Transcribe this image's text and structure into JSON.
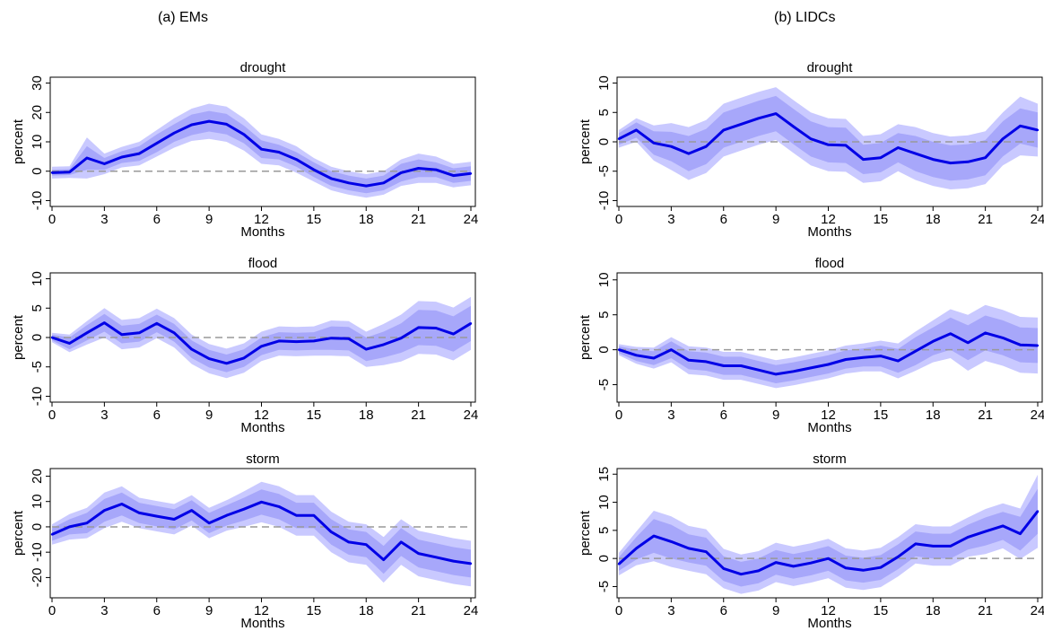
{
  "columns": [
    {
      "title": "(a) EMs"
    },
    {
      "title": "(b)  LIDCs"
    }
  ],
  "chart_data": [
    {
      "type": "line",
      "panel": "EMs",
      "title": "drought",
      "xlabel": "Months",
      "ylabel": "percent",
      "xlim": [
        0,
        24
      ],
      "ylim": [
        -12,
        32
      ],
      "xticks": [
        0,
        3,
        6,
        9,
        12,
        15,
        18,
        21,
        24
      ],
      "yticks": [
        -10,
        0,
        10,
        20,
        30
      ],
      "x": [
        0,
        1,
        2,
        3,
        4,
        5,
        6,
        7,
        8,
        9,
        10,
        11,
        12,
        13,
        14,
        15,
        16,
        17,
        18,
        19,
        20,
        21,
        22,
        23,
        24
      ],
      "series": [
        {
          "values": [
            -0.5,
            -0.3,
            4.5,
            2.5,
            4.8,
            6,
            9.5,
            13,
            15.8,
            17,
            16,
            12.5,
            7.5,
            6.5,
            4,
            0.5,
            -2.5,
            -4,
            -5,
            -4,
            -0.5,
            1,
            0.5,
            -1.5,
            -0.8
          ],
          "bands": [
            {
              "width": [
                2,
                2,
                7,
                3.5,
                3.5,
                4,
                4.5,
                5,
                5.5,
                6,
                6,
                5.5,
                5,
                4.5,
                4.5,
                4,
                4,
                4,
                4,
                4,
                4.5,
                5,
                4.5,
                4,
                4
              ],
              "color": "#c9c9ff"
            },
            {
              "width": [
                1,
                1,
                4,
                2,
                2,
                2.5,
                3,
                3,
                3.5,
                3.5,
                3.5,
                3,
                3,
                2.5,
                2.5,
                2.5,
                2.5,
                2.5,
                2.5,
                2.5,
                3,
                3,
                2.5,
                2.5,
                2.5
              ],
              "color": "#a7a7fa"
            }
          ]
        }
      ],
      "line_color": "#0000e6",
      "zero_line": true
    },
    {
      "type": "line",
      "panel": "LIDCs",
      "title": "drought",
      "xlabel": "Months",
      "ylabel": "percent",
      "xlim": [
        0,
        24
      ],
      "ylim": [
        -11,
        11
      ],
      "xticks": [
        0,
        3,
        6,
        9,
        12,
        15,
        18,
        21,
        24
      ],
      "yticks": [
        -10,
        -5,
        0,
        5,
        10
      ],
      "x": [
        0,
        1,
        2,
        3,
        4,
        5,
        6,
        7,
        8,
        9,
        10,
        11,
        12,
        13,
        14,
        15,
        16,
        17,
        18,
        19,
        20,
        21,
        22,
        23,
        24
      ],
      "series": [
        {
          "values": [
            0.5,
            2,
            -0.2,
            -0.8,
            -2,
            -0.8,
            2,
            3,
            4,
            4.8,
            2.6,
            0.5,
            -0.5,
            -0.6,
            -3,
            -2.7,
            -1,
            -2,
            -3,
            -3.6,
            -3.4,
            -2.7,
            0.5,
            2.7,
            2
          ],
          "bands": [
            {
              "width": [
                1.5,
                2,
                3,
                4,
                4.5,
                4.5,
                4.5,
                4.5,
                4.5,
                4.5,
                4.5,
                4.5,
                4.5,
                4.5,
                4,
                4,
                4,
                4.5,
                4.5,
                4.5,
                4.5,
                4.5,
                4.5,
                5,
                4.5
              ],
              "color": "#c9c9ff"
            },
            {
              "width": [
                1,
                1.3,
                2,
                2.5,
                3,
                3,
                3,
                3,
                3,
                3,
                3,
                3,
                3,
                3,
                2.5,
                2.5,
                2.5,
                3,
                3,
                3,
                3,
                3,
                3,
                3,
                3
              ],
              "color": "#a7a7fa"
            }
          ]
        }
      ],
      "line_color": "#0000e6",
      "zero_line": true
    },
    {
      "type": "line",
      "panel": "EMs",
      "title": "flood",
      "xlabel": "Months",
      "ylabel": "percent",
      "xlim": [
        0,
        24
      ],
      "ylim": [
        -11,
        11
      ],
      "xticks": [
        0,
        3,
        6,
        9,
        12,
        15,
        18,
        21,
        24
      ],
      "yticks": [
        -10,
        -5,
        0,
        5,
        10
      ],
      "x": [
        0,
        1,
        2,
        3,
        4,
        5,
        6,
        7,
        8,
        9,
        10,
        11,
        12,
        13,
        14,
        15,
        16,
        17,
        18,
        19,
        20,
        21,
        22,
        23,
        24
      ],
      "series": [
        {
          "values": [
            0,
            -1,
            0.8,
            2.5,
            0.5,
            0.8,
            2.4,
            0.8,
            -2,
            -3.6,
            -4.4,
            -3.5,
            -1.5,
            -0.6,
            -0.7,
            -0.6,
            -0.1,
            -0.2,
            -2,
            -1.2,
            -0.1,
            1.7,
            1.6,
            0.6,
            2.4
          ],
          "bands": [
            {
              "width": [
                0.8,
                1.5,
                2,
                2.5,
                2.5,
                2.5,
                2.5,
                2.5,
                2.5,
                2.5,
                2.5,
                2.5,
                2.5,
                2.5,
                2.5,
                2.5,
                3,
                3,
                3,
                3.5,
                4,
                4.5,
                4.5,
                4.5,
                4.5
              ],
              "color": "#c9c9ff"
            },
            {
              "width": [
                0.5,
                1,
                1.3,
                1.5,
                1.5,
                1.5,
                1.5,
                1.5,
                1.5,
                1.5,
                1.5,
                1.5,
                1.5,
                1.5,
                1.5,
                1.5,
                2,
                2,
                2,
                2.2,
                2.5,
                3,
                3,
                3,
                3
              ],
              "color": "#a7a7fa"
            }
          ]
        }
      ],
      "line_color": "#0000e6",
      "zero_line": true
    },
    {
      "type": "line",
      "panel": "LIDCs",
      "title": "flood",
      "xlabel": "Months",
      "ylabel": "percent",
      "xlim": [
        0,
        24
      ],
      "ylim": [
        -7.5,
        11
      ],
      "xticks": [
        0,
        3,
        6,
        9,
        12,
        15,
        18,
        21,
        24
      ],
      "yticks": [
        -5,
        0,
        5,
        10
      ],
      "x": [
        0,
        1,
        2,
        3,
        4,
        5,
        6,
        7,
        8,
        9,
        10,
        11,
        12,
        13,
        14,
        15,
        16,
        17,
        18,
        19,
        20,
        21,
        22,
        23,
        24
      ],
      "series": [
        {
          "values": [
            0,
            -0.8,
            -1.2,
            0,
            -1.5,
            -1.7,
            -2.3,
            -2.3,
            -2.9,
            -3.5,
            -3.1,
            -2.6,
            -2.1,
            -1.4,
            -1.1,
            -0.9,
            -1.6,
            -0.2,
            1.2,
            2.3,
            1,
            2.4,
            1.7,
            0.7,
            0.6
          ],
          "bands": [
            {
              "width": [
                0.8,
                1.2,
                1.5,
                1.8,
                2,
                2,
                2,
                2,
                2,
                2,
                2,
                2,
                2,
                2,
                2,
                2.2,
                2.5,
                2.8,
                3,
                3.5,
                4,
                4,
                4,
                4,
                4
              ],
              "color": "#c9c9ff"
            },
            {
              "width": [
                0.5,
                0.8,
                1,
                1.2,
                1.3,
                1.3,
                1.3,
                1.3,
                1.3,
                1.3,
                1.3,
                1.3,
                1.3,
                1.3,
                1.3,
                1.5,
                1.7,
                2,
                2,
                2.3,
                2.5,
                2.5,
                2.5,
                2.5,
                2.5
              ],
              "color": "#a7a7fa"
            }
          ]
        }
      ],
      "line_color": "#0000e6",
      "zero_line": true
    },
    {
      "type": "line",
      "panel": "EMs",
      "title": "storm",
      "xlabel": "Months",
      "ylabel": "percent",
      "xlim": [
        0,
        24
      ],
      "ylim": [
        -28,
        23
      ],
      "xticks": [
        0,
        3,
        6,
        9,
        12,
        15,
        18,
        21,
        24
      ],
      "yticks": [
        -20,
        -10,
        0,
        10,
        20
      ],
      "x": [
        0,
        1,
        2,
        3,
        4,
        5,
        6,
        7,
        8,
        9,
        10,
        11,
        12,
        13,
        14,
        15,
        16,
        17,
        18,
        19,
        20,
        21,
        22,
        23,
        24
      ],
      "series": [
        {
          "values": [
            -3,
            0,
            1.5,
            6.5,
            9,
            5.5,
            4.2,
            3,
            6.5,
            1.5,
            4.5,
            7,
            9.8,
            8,
            4.5,
            4.5,
            -2,
            -6,
            -7,
            -13,
            -6,
            -10.5,
            -12,
            -13.5,
            -14.5
          ],
          "bands": [
            {
              "width": [
                4,
                5,
                6,
                7,
                7,
                6,
                6,
                6,
                6,
                6,
                6,
                7,
                8,
                8,
                8,
                8,
                8,
                8,
                8,
                9,
                9,
                9,
                9,
                9,
                9
              ],
              "color": "#c9c9ff"
            },
            {
              "width": [
                2.5,
                3,
                4,
                4.5,
                4.5,
                4,
                4,
                4,
                4,
                4,
                4,
                4.5,
                5,
                5,
                5,
                5,
                5,
                5,
                5,
                5.5,
                5.5,
                5.5,
                5.5,
                5.5,
                5.5
              ],
              "color": "#a7a7fa"
            }
          ]
        }
      ],
      "line_color": "#0000e6",
      "zero_line": true
    },
    {
      "type": "line",
      "panel": "LIDCs",
      "title": "storm",
      "xlabel": "Months",
      "ylabel": "percent",
      "xlim": [
        0,
        24
      ],
      "ylim": [
        -7,
        16
      ],
      "xticks": [
        0,
        3,
        6,
        9,
        12,
        15,
        18,
        21,
        24
      ],
      "yticks": [
        -5,
        0,
        5,
        10,
        15
      ],
      "x": [
        0,
        1,
        2,
        3,
        4,
        5,
        6,
        7,
        8,
        9,
        10,
        11,
        12,
        13,
        14,
        15,
        16,
        17,
        18,
        19,
        20,
        21,
        22,
        23,
        24
      ],
      "series": [
        {
          "values": [
            -1,
            1.8,
            4,
            3,
            1.8,
            1.2,
            -1.8,
            -2.8,
            -2.2,
            -0.7,
            -1.4,
            -0.8,
            0,
            -1.7,
            -2.1,
            -1.6,
            0.3,
            2.6,
            2.2,
            2.2,
            3.8,
            4.8,
            5.8,
            4.4,
            8.4
          ],
          "bands": [
            {
              "width": [
                2,
                3,
                4.5,
                4.5,
                4,
                4,
                3.5,
                3.5,
                3.5,
                3.5,
                3.5,
                3.5,
                3.5,
                3.5,
                3.5,
                3.5,
                3.5,
                3.5,
                3.5,
                3.5,
                3.5,
                4,
                4,
                4.5,
                6.5
              ],
              "color": "#c9c9ff"
            },
            {
              "width": [
                1.2,
                2,
                3,
                3,
                2.5,
                2.5,
                2.2,
                2.2,
                2.2,
                2.2,
                2.2,
                2.2,
                2.2,
                2.2,
                2.2,
                2.2,
                2.2,
                2.2,
                2.2,
                2.2,
                2.2,
                2.5,
                2.5,
                3,
                4
              ],
              "color": "#a7a7fa"
            }
          ]
        }
      ],
      "line_color": "#0000e6",
      "zero_line": true
    }
  ]
}
